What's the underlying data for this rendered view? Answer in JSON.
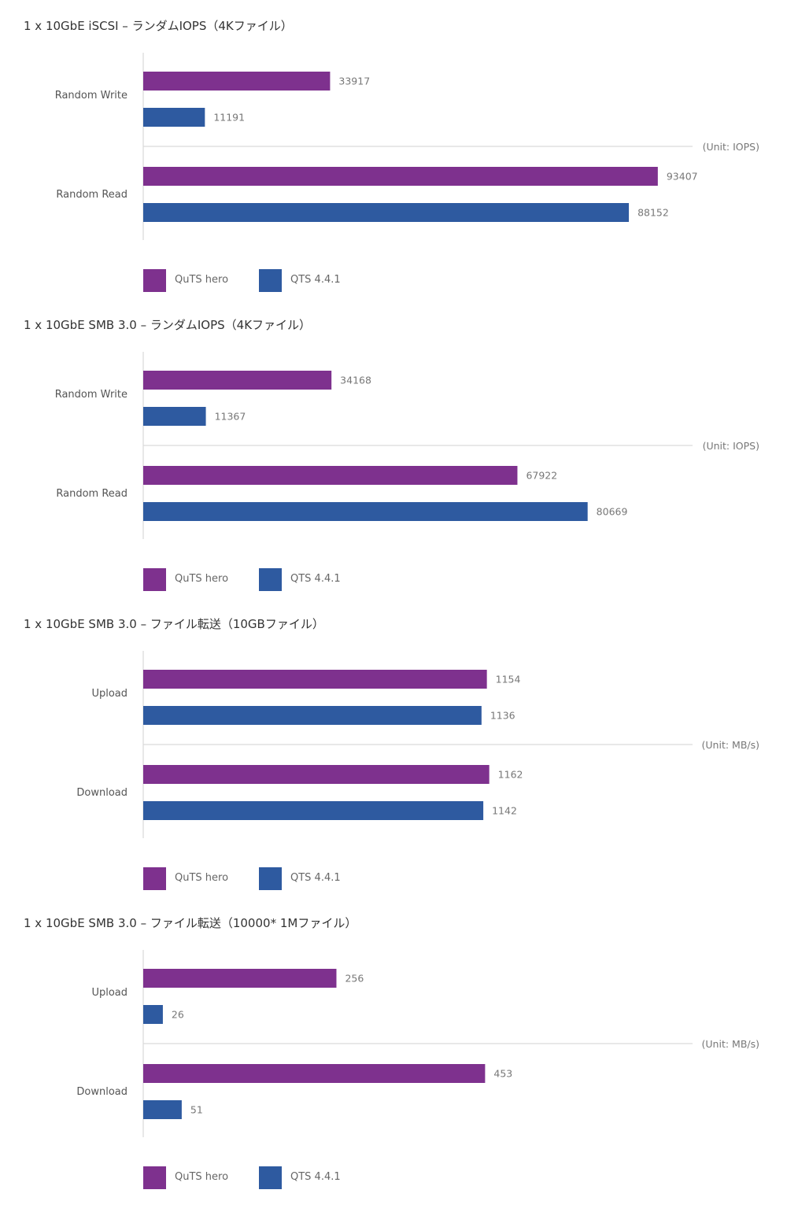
{
  "colors": {
    "quts_hero": "#7e318e",
    "qts": "#2e5aa0"
  },
  "legend": {
    "quts_hero": "QuTS hero",
    "qts": "QTS 4.4.1"
  },
  "chart_data": [
    {
      "type": "bar",
      "orientation": "horizontal",
      "title": "1 x 10GbE iSCSI – ランダムIOPS（4Kファイル）",
      "unit": "(Unit: IOPS)",
      "categories": [
        "Random Write",
        "Random Read"
      ],
      "series": [
        {
          "name": "QuTS hero",
          "values": [
            33917,
            93407
          ]
        },
        {
          "name": "QTS 4.4.1",
          "values": [
            11191,
            88152
          ]
        }
      ],
      "xlim": [
        0,
        100000
      ],
      "legend_position": "bottom-left"
    },
    {
      "type": "bar",
      "orientation": "horizontal",
      "title": "1 x 10GbE SMB 3.0 – ランダムIOPS（4Kファイル）",
      "unit": "(Unit: IOPS)",
      "categories": [
        "Random Write",
        "Random Read"
      ],
      "series": [
        {
          "name": "QuTS hero",
          "values": [
            34168,
            67922
          ]
        },
        {
          "name": "QTS 4.4.1",
          "values": [
            11367,
            80669
          ]
        }
      ],
      "xlim": [
        0,
        100000
      ],
      "legend_position": "bottom-left"
    },
    {
      "type": "bar",
      "orientation": "horizontal",
      "title": "1 x 10GbE SMB 3.0 – ファイル転送（10GBファイル）",
      "unit": "(Unit: MB/s)",
      "categories": [
        "Upload",
        "Download"
      ],
      "series": [
        {
          "name": "QuTS hero",
          "values": [
            1154,
            1162
          ]
        },
        {
          "name": "QTS 4.4.1",
          "values": [
            1136,
            1142
          ]
        }
      ],
      "xlim": [
        0,
        1850
      ],
      "legend_position": "bottom-left"
    },
    {
      "type": "bar",
      "orientation": "horizontal",
      "title": "1 x 10GbE SMB 3.0 – ファイル転送（10000* 1Mファイル）",
      "unit": "(Unit: MB/s)",
      "categories": [
        "Upload",
        "Download"
      ],
      "series": [
        {
          "name": "QuTS hero",
          "values": [
            256,
            453
          ]
        },
        {
          "name": "QTS 4.4.1",
          "values": [
            26,
            51
          ]
        }
      ],
      "xlim": [
        0,
        730
      ],
      "legend_position": "bottom-left"
    }
  ]
}
